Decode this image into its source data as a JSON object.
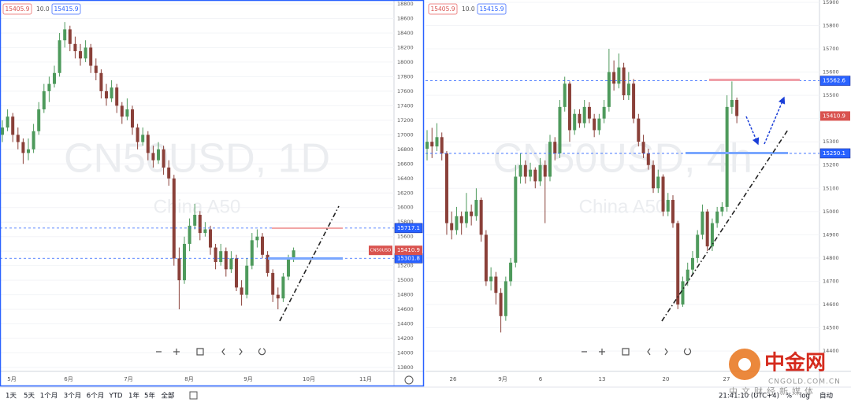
{
  "chart_data": [
    {
      "type": "candlestick",
      "title": "CN50USD, 1D",
      "subtitle": "China A50",
      "header": {
        "bid": "15405.9",
        "spread": "10.0",
        "ask": "15415.9"
      },
      "ylim": [
        13768,
        18854
      ],
      "yticks": [
        13800,
        14000,
        14200,
        14400,
        14600,
        14800,
        15000,
        15200,
        15400,
        15600,
        15800,
        16000,
        16200,
        16400,
        16600,
        16800,
        17000,
        17200,
        17400,
        17600,
        17800,
        18000,
        18200,
        18400,
        18600,
        18800
      ],
      "xticks": [
        "5月",
        "6月",
        "7月",
        "8月",
        "9月",
        "10月",
        "11月"
      ],
      "up_color": "#4e9a5c",
      "down_color": "#8a4039",
      "price_lines": [
        {
          "value": 15717.1,
          "color": "#2962ff"
        },
        {
          "value": 15301.8,
          "color": "#2962ff"
        }
      ],
      "last_price": {
        "value": 15410.9,
        "symbol": "CN50USD",
        "color": "#d9534f"
      },
      "candles": [
        [
          17000,
          17200,
          16900,
          17100
        ],
        [
          17100,
          17350,
          17050,
          17250
        ],
        [
          17250,
          17300,
          16900,
          17000
        ],
        [
          17000,
          17100,
          16800,
          16900
        ],
        [
          16900,
          16950,
          16600,
          16750
        ],
        [
          16750,
          16950,
          16650,
          16800
        ],
        [
          16800,
          17150,
          16750,
          17050
        ],
        [
          17050,
          17450,
          17000,
          17350
        ],
        [
          17350,
          17700,
          17300,
          17600
        ],
        [
          17600,
          17800,
          17450,
          17700
        ],
        [
          17700,
          17950,
          17650,
          17850
        ],
        [
          17850,
          18400,
          17800,
          18300
        ],
        [
          18300,
          18550,
          18200,
          18450
        ],
        [
          18450,
          18500,
          18150,
          18250
        ],
        [
          18250,
          18350,
          18050,
          18150
        ],
        [
          18150,
          18250,
          17950,
          18050
        ],
        [
          18050,
          18300,
          18000,
          18200
        ],
        [
          18200,
          18250,
          17850,
          17950
        ],
        [
          17950,
          18050,
          17750,
          17850
        ],
        [
          17850,
          17900,
          17500,
          17600
        ],
        [
          17600,
          17700,
          17400,
          17500
        ],
        [
          17500,
          17750,
          17450,
          17650
        ],
        [
          17650,
          17700,
          17300,
          17400
        ],
        [
          17400,
          17450,
          17150,
          17250
        ],
        [
          17250,
          17500,
          17200,
          17350
        ],
        [
          17350,
          17400,
          17000,
          17100
        ],
        [
          17100,
          17150,
          16800,
          16900
        ],
        [
          16900,
          17100,
          16850,
          17000
        ],
        [
          17000,
          17050,
          16650,
          16750
        ],
        [
          16750,
          16850,
          16550,
          16650
        ],
        [
          16650,
          16900,
          16600,
          16800
        ],
        [
          16800,
          16850,
          16450,
          16550
        ],
        [
          16550,
          16650,
          16300,
          16400
        ],
        [
          16400,
          16450,
          15200,
          15300
        ],
        [
          15300,
          15450,
          14600,
          15000
        ],
        [
          15000,
          15600,
          14950,
          15500
        ],
        [
          15500,
          15850,
          15400,
          15750
        ],
        [
          15750,
          16050,
          15700,
          15900
        ],
        [
          15900,
          15950,
          15550,
          15650
        ],
        [
          15650,
          15800,
          15600,
          15700
        ],
        [
          15700,
          15750,
          15350,
          15450
        ],
        [
          15450,
          15500,
          15150,
          15250
        ],
        [
          15250,
          15500,
          15200,
          15400
        ],
        [
          15400,
          15450,
          15050,
          15150
        ],
        [
          15150,
          15400,
          15100,
          15300
        ],
        [
          15300,
          15350,
          14850,
          14900
        ],
        [
          14900,
          15000,
          14650,
          14800
        ],
        [
          14800,
          15300,
          14750,
          15200
        ],
        [
          15200,
          15650,
          15150,
          15550
        ],
        [
          15550,
          15700,
          15450,
          15600
        ],
        [
          15600,
          15650,
          15300,
          15350
        ],
        [
          15350,
          15400,
          15050,
          15100
        ],
        [
          15100,
          15150,
          14700,
          14800
        ],
        [
          14800,
          14900,
          14600,
          14750
        ],
        [
          14750,
          15100,
          14700,
          15050
        ],
        [
          15050,
          15350,
          15000,
          15300
        ],
        [
          15300,
          15450,
          15250,
          15410.9
        ]
      ]
    },
    {
      "type": "candlestick",
      "title": "CN50USD, 4h",
      "subtitle": "China A50",
      "header": {
        "bid": "15405.9",
        "spread": "10.0",
        "ask": "15415.9"
      },
      "ylim": [
        14319,
        15910
      ],
      "yticks": [
        14400,
        14500,
        14600,
        14700,
        14800,
        14900,
        15000,
        15100,
        15200,
        15300,
        15400,
        15500,
        15600,
        15700,
        15800,
        15900
      ],
      "xticks": [
        "26",
        "9月",
        "6",
        "13",
        "20",
        "27"
      ],
      "up_color": "#4e9a5c",
      "down_color": "#8a4039",
      "price_lines": [
        {
          "value": 15562.6,
          "color": "#2962ff"
        },
        {
          "value": 15250.1,
          "color": "#2962ff"
        }
      ],
      "last_price": {
        "value": 15410.9,
        "color": "#d9534f"
      },
      "candles": [
        [
          15270,
          15350,
          15220,
          15300
        ],
        [
          15300,
          15360,
          15230,
          15280
        ],
        [
          15280,
          15380,
          15260,
          15320
        ],
        [
          15320,
          15340,
          15220,
          15250
        ],
        [
          15250,
          15260,
          14900,
          14950
        ],
        [
          14950,
          15000,
          14880,
          14920
        ],
        [
          14920,
          15020,
          14900,
          14980
        ],
        [
          14980,
          15000,
          14900,
          14950
        ],
        [
          14950,
          15080,
          14930,
          15000
        ],
        [
          15000,
          15030,
          14940,
          14980
        ],
        [
          14980,
          15100,
          14960,
          15050
        ],
        [
          15050,
          15060,
          14870,
          14900
        ],
        [
          14900,
          14920,
          14680,
          14700
        ],
        [
          14700,
          14760,
          14660,
          14720
        ],
        [
          14720,
          14740,
          14600,
          14650
        ],
        [
          14650,
          14670,
          14480,
          14550
        ],
        [
          14550,
          14720,
          14530,
          14700
        ],
        [
          14700,
          14800,
          14680,
          14780
        ],
        [
          14780,
          15200,
          14760,
          15150
        ],
        [
          15150,
          15250,
          15120,
          15200
        ],
        [
          15200,
          15220,
          15120,
          15150
        ],
        [
          15150,
          15210,
          15130,
          15180
        ],
        [
          15180,
          15190,
          15100,
          15130
        ],
        [
          15130,
          15230,
          15110,
          15200
        ],
        [
          15200,
          15220,
          14950,
          15150
        ],
        [
          15150,
          15330,
          15130,
          15300
        ],
        [
          15300,
          15320,
          15220,
          15250
        ],
        [
          15250,
          15480,
          15230,
          15450
        ],
        [
          15450,
          15580,
          15430,
          15550
        ],
        [
          15550,
          15560,
          15300,
          15350
        ],
        [
          15350,
          15440,
          15330,
          15420
        ],
        [
          15420,
          15440,
          15360,
          15380
        ],
        [
          15380,
          15480,
          15360,
          15450
        ],
        [
          15450,
          15470,
          15380,
          15400
        ],
        [
          15400,
          15420,
          15320,
          15350
        ],
        [
          15350,
          15420,
          15330,
          15400
        ],
        [
          15400,
          15480,
          15380,
          15450
        ],
        [
          15450,
          15700,
          15430,
          15600
        ],
        [
          15600,
          15650,
          15520,
          15550
        ],
        [
          15550,
          15680,
          15530,
          15620
        ],
        [
          15620,
          15640,
          15480,
          15500
        ],
        [
          15500,
          15600,
          15480,
          15550
        ],
        [
          15550,
          15570,
          15380,
          15400
        ],
        [
          15400,
          15420,
          15280,
          15300
        ],
        [
          15300,
          15330,
          15230,
          15250
        ],
        [
          15250,
          15270,
          15180,
          15200
        ],
        [
          15200,
          15220,
          15080,
          15100
        ],
        [
          15100,
          15180,
          15080,
          15150
        ],
        [
          15150,
          15160,
          14980,
          15000
        ],
        [
          15000,
          15080,
          14980,
          15050
        ],
        [
          15050,
          15070,
          14930,
          14950
        ],
        [
          14950,
          14960,
          14580,
          14600
        ],
        [
          14600,
          14720,
          14590,
          14700
        ],
        [
          14700,
          14780,
          14680,
          14750
        ],
        [
          14750,
          14830,
          14730,
          14800
        ],
        [
          14800,
          14920,
          14780,
          14900
        ],
        [
          14900,
          15030,
          14880,
          15000
        ],
        [
          15000,
          15010,
          14830,
          14850
        ],
        [
          14850,
          14970,
          14830,
          14950
        ],
        [
          14950,
          15020,
          14930,
          15000
        ],
        [
          15000,
          15040,
          14980,
          15020
        ],
        [
          15020,
          15500,
          15000,
          15450
        ],
        [
          15450,
          15560,
          15420,
          15480
        ],
        [
          15480,
          15490,
          15380,
          15410.9
        ]
      ]
    }
  ],
  "toolbar": {
    "ranges": [
      "1天",
      "5天",
      "1个月",
      "3个月",
      "6个月",
      "YTD",
      "1年",
      "5年",
      "全部"
    ],
    "time": "21:41:10 (UTC+4)",
    "percent": "%",
    "log": "log",
    "auto": "自动"
  },
  "logo": {
    "name": "中金网",
    "domain": "CNGOLD.COM.CN",
    "slogan": "中文财经新媒体"
  }
}
